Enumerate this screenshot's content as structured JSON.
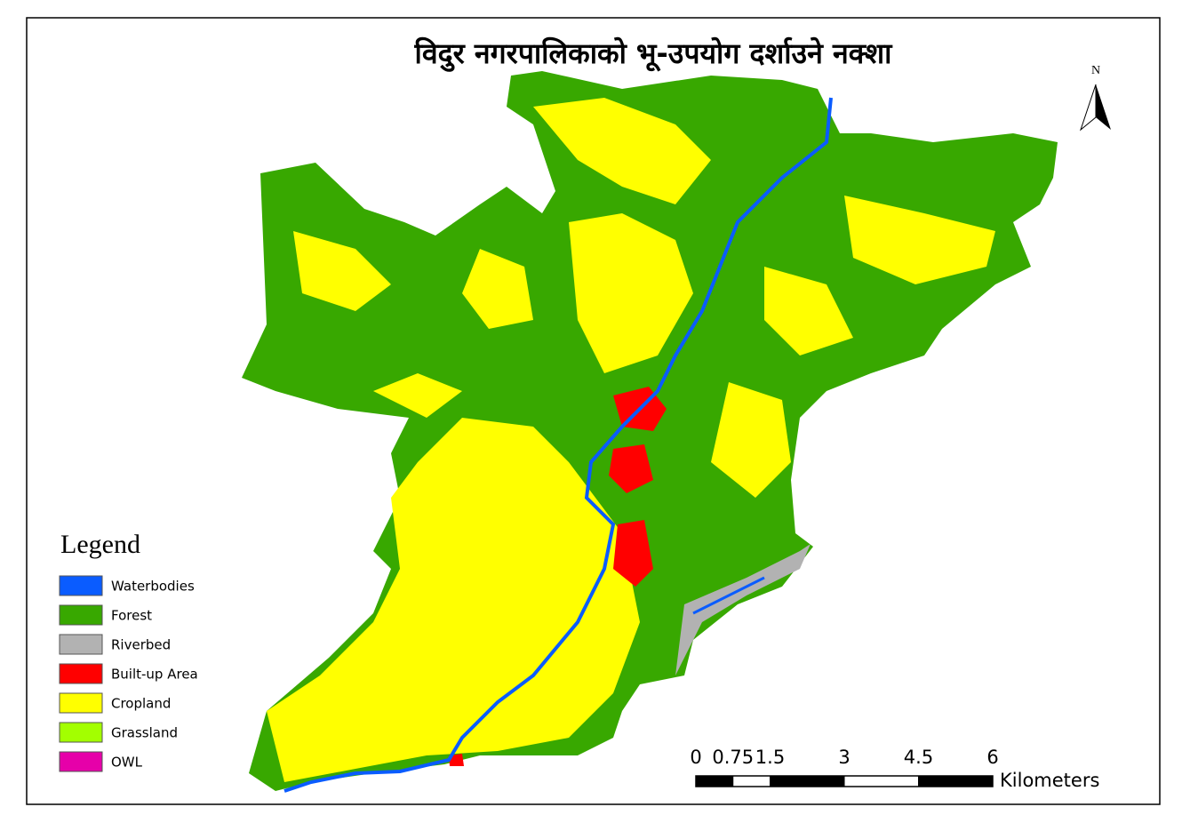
{
  "title": "विदुर नगरपालिकाको भू-उपयोग दर्शाउने  नक्शा",
  "north": "N",
  "legend": {
    "title": "Legend",
    "items": [
      {
        "name": "Waterbodies",
        "color": "#0a5cff"
      },
      {
        "name": "Forest",
        "color": "#38a800"
      },
      {
        "name": "Riverbed",
        "color": "#b2b2b2"
      },
      {
        "name": "Built-up Area",
        "color": "#ff0000"
      },
      {
        "name": "Cropland",
        "color": "#ffff00"
      },
      {
        "name": "Grassland",
        "color": "#a3ff00"
      },
      {
        "name": "OWL",
        "color": "#e600a9"
      }
    ]
  },
  "scale_bar": {
    "ticks": [
      0,
      0.75,
      1.5,
      3,
      4.5,
      6
    ],
    "unit": "Kilometers"
  }
}
